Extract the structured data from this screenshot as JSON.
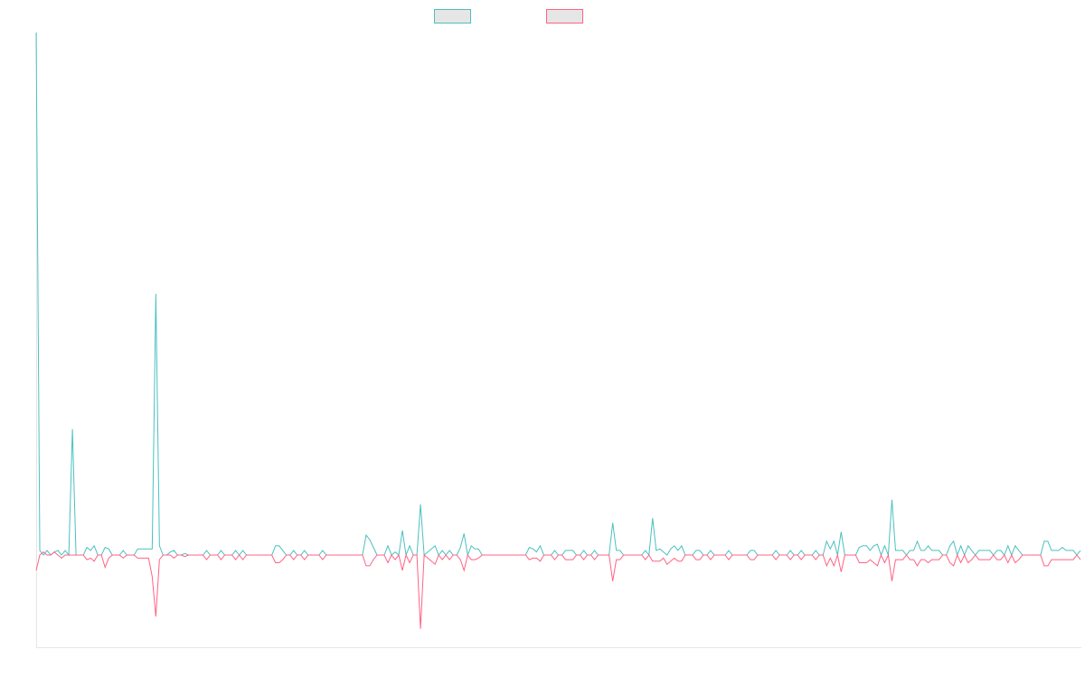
{
  "chart_data": {
    "type": "line",
    "title": "",
    "xlabel": "",
    "ylabel": "",
    "ylim": [
      -6,
      34
    ],
    "grid": false,
    "legend_position": "top-center",
    "series": [
      {
        "name": "",
        "color": "#4bc0c0",
        "legend_fill": "#e6e6e6",
        "values": [
          34,
          0.3,
          0,
          0.3,
          0,
          0.2,
          0.3,
          0,
          0.3,
          0,
          8.2,
          0,
          0,
          0,
          0.5,
          0.3,
          0.6,
          0,
          0,
          0.5,
          0.4,
          0,
          0,
          0,
          0.3,
          0,
          0,
          0,
          0.4,
          0.4,
          0.4,
          0.4,
          0.4,
          17,
          0.6,
          0,
          0,
          0.2,
          0.3,
          0,
          0,
          0.1,
          0,
          0,
          0,
          0,
          0,
          0.3,
          0,
          0,
          0,
          0.3,
          0,
          0,
          0,
          0.3,
          0,
          0.3,
          0,
          0,
          0,
          0,
          0,
          0,
          0,
          0,
          0.6,
          0.6,
          0.3,
          0,
          0,
          0.3,
          0,
          0,
          0.3,
          0,
          0,
          0,
          0,
          0.3,
          0,
          0,
          0,
          0,
          0,
          0,
          0,
          0,
          0,
          0,
          0,
          1.3,
          1.0,
          0.5,
          0,
          0,
          0,
          0.6,
          0,
          0.2,
          0,
          1.6,
          0,
          0.6,
          0,
          0,
          3.3,
          0,
          0.2,
          0.4,
          0.6,
          0,
          0.3,
          0,
          0.3,
          0,
          0,
          0.5,
          1.4,
          0,
          0.6,
          0.4,
          0.4,
          0,
          0,
          0,
          0,
          0,
          0,
          0,
          0,
          0,
          0,
          0,
          0,
          0,
          0.5,
          0.4,
          0.2,
          0.6,
          0,
          0,
          0,
          0.3,
          0,
          0,
          0.3,
          0.3,
          0.3,
          0,
          0,
          0.3,
          0,
          0,
          0.3,
          0,
          0,
          0,
          0,
          2.1,
          0.3,
          0.3,
          0,
          0,
          0,
          0,
          0,
          0,
          0.3,
          0,
          2.4,
          0.3,
          0.4,
          0.2,
          0,
          0.4,
          0.6,
          0.3,
          0.6,
          0,
          0,
          0,
          0.3,
          0.3,
          0,
          0,
          0.3,
          0,
          0,
          0,
          0,
          0.3,
          0,
          0,
          0,
          0,
          0,
          0.3,
          0.3,
          0,
          0,
          0,
          0,
          0,
          0.3,
          0,
          0,
          0,
          0.3,
          0,
          0,
          0.3,
          0,
          0,
          0,
          0.3,
          0,
          0,
          0.9,
          0.4,
          0.9,
          0,
          1.5,
          0,
          0,
          0,
          0,
          0.5,
          0.6,
          0.6,
          0.3,
          0.6,
          0.7,
          0,
          0.6,
          0,
          3.6,
          0.3,
          0.3,
          0.3,
          0,
          0.3,
          0.3,
          0.9,
          0.3,
          0.3,
          0.6,
          0.3,
          0.3,
          0.3,
          0,
          0,
          0.6,
          0.9,
          0,
          0.6,
          0,
          0.6,
          0.3,
          0,
          0.3,
          0.3,
          0.3,
          0.3,
          0,
          0.3,
          0.3,
          0,
          0.6,
          0,
          0.6,
          0.3,
          0,
          0,
          0,
          0,
          0,
          0,
          0.9,
          0.9,
          0.3,
          0.3,
          0.3,
          0.5,
          0.3,
          0.3,
          0.3,
          0,
          0.3
        ]
      },
      {
        "name": "",
        "color": "#ff6384",
        "legend_fill": "#e6e6e6",
        "values": [
          -1,
          0,
          0.2,
          0,
          0,
          0.2,
          0,
          -0.2,
          0,
          0,
          0,
          0,
          0,
          0,
          -0.3,
          -0.2,
          -0.4,
          0,
          0,
          -0.8,
          -0.2,
          0,
          0,
          0,
          -0.2,
          0,
          0,
          0,
          -0.2,
          -0.2,
          -0.2,
          -0.2,
          -1.4,
          -4,
          -0.3,
          0,
          0,
          0,
          -0.2,
          0,
          0,
          -0.1,
          0,
          0,
          0,
          0,
          0,
          -0.3,
          0,
          0,
          0,
          -0.3,
          0,
          0,
          0,
          -0.3,
          0,
          -0.3,
          0,
          0,
          0,
          0,
          0,
          0,
          0,
          0,
          -0.5,
          -0.5,
          -0.3,
          0,
          0,
          -0.3,
          0,
          0,
          -0.3,
          0,
          0,
          0,
          0,
          -0.3,
          0,
          0,
          0,
          0,
          0,
          0,
          0,
          0,
          0,
          0,
          0,
          -0.7,
          -0.7,
          -0.3,
          0,
          0,
          0,
          -0.5,
          0,
          -0.3,
          0,
          -1.0,
          0,
          -0.5,
          0,
          0,
          -4.8,
          0,
          -0.2,
          -0.4,
          -0.6,
          0,
          -0.3,
          0,
          -0.3,
          0,
          0,
          -0.3,
          -1.0,
          0,
          -0.3,
          -0.3,
          -0.2,
          0,
          0,
          0,
          0,
          0,
          0,
          0,
          0,
          0,
          0,
          0,
          0,
          0,
          -0.3,
          -0.2,
          -0.2,
          -0.4,
          0,
          0,
          0,
          -0.3,
          0,
          0,
          -0.3,
          -0.3,
          -0.3,
          0,
          0,
          -0.3,
          0,
          0,
          -0.3,
          0,
          0,
          0,
          0,
          -1.7,
          -0.3,
          -0.3,
          0,
          0,
          0,
          0,
          0,
          0,
          -0.3,
          0,
          -0.4,
          -0.4,
          -0.4,
          -0.2,
          -0.6,
          -0.4,
          -0.2,
          -0.4,
          -0.4,
          0,
          0,
          0,
          -0.3,
          -0.3,
          0,
          0,
          -0.3,
          0,
          0,
          0,
          0,
          -0.3,
          0,
          0,
          0,
          0,
          0,
          -0.3,
          -0.3,
          0,
          0,
          0,
          0,
          0,
          -0.3,
          0,
          0,
          0,
          -0.3,
          0,
          0,
          -0.3,
          0,
          0,
          0,
          -0.3,
          0,
          0,
          -0.7,
          -0.2,
          -0.7,
          0,
          -1.1,
          0,
          0,
          0,
          0,
          -0.5,
          -0.5,
          -0.5,
          -0.3,
          -0.5,
          -0.7,
          0,
          -0.5,
          0,
          -1.7,
          -0.3,
          -0.3,
          -0.3,
          0,
          -0.3,
          -0.3,
          -0.7,
          -0.3,
          -0.3,
          -0.5,
          -0.3,
          -0.3,
          -0.3,
          0,
          0,
          -0.5,
          -0.7,
          0,
          -0.5,
          0,
          -0.5,
          -0.3,
          0,
          -0.3,
          -0.3,
          -0.3,
          -0.3,
          0,
          -0.3,
          -0.3,
          0,
          -0.5,
          0,
          -0.5,
          -0.3,
          0,
          0,
          0,
          0,
          0,
          0,
          -0.7,
          -0.7,
          -0.3,
          -0.3,
          -0.3,
          -0.3,
          -0.3,
          -0.3,
          -0.3,
          0,
          -0.3
        ]
      }
    ]
  }
}
